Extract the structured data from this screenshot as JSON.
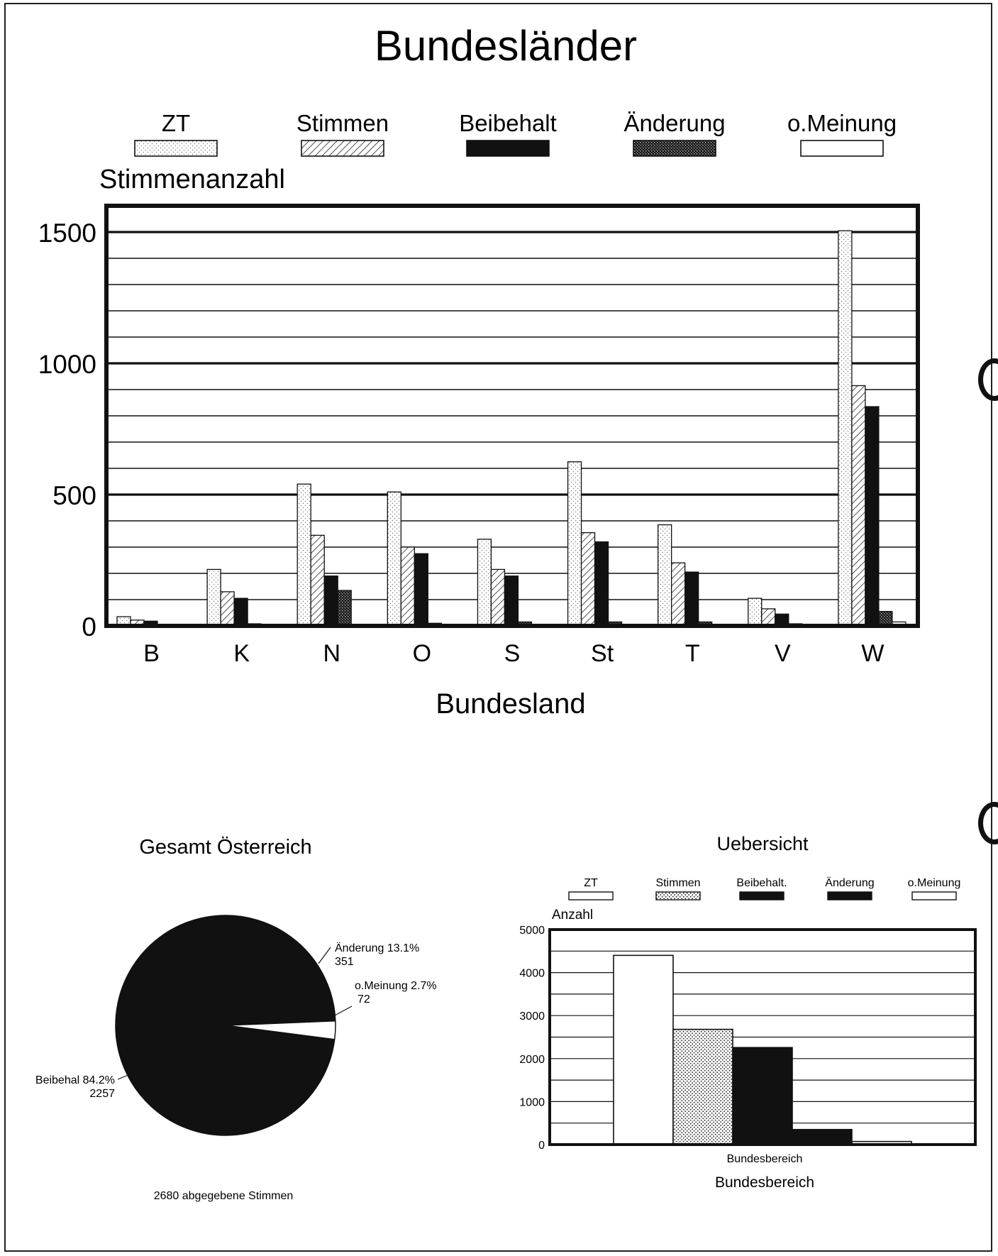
{
  "colors": {
    "ink": "#111111",
    "paper": "#ffffff"
  },
  "chart_data": [
    {
      "type": "bar",
      "title": "Bundesländer",
      "ylabel": "Stimmenanzahl",
      "xlabel": "Bundesland",
      "ylim": [
        0,
        1500
      ],
      "yticks": [
        0,
        500,
        1000,
        1500
      ],
      "grid": true,
      "legend_position": "top",
      "categories": [
        "B",
        "K",
        "N",
        "O",
        "S",
        "St",
        "T",
        "V",
        "W"
      ],
      "series": [
        {
          "name": "ZT",
          "pattern": "dotted-light",
          "values": [
            35,
            215,
            540,
            510,
            330,
            625,
            385,
            105,
            1505
          ]
        },
        {
          "name": "Stimmen",
          "pattern": "hatched",
          "values": [
            22,
            130,
            345,
            300,
            215,
            355,
            240,
            65,
            915
          ]
        },
        {
          "name": "Beibehalt",
          "pattern": "solid-black",
          "values": [
            18,
            105,
            190,
            275,
            190,
            320,
            205,
            45,
            835
          ]
        },
        {
          "name": "Änderung",
          "pattern": "crosshatch",
          "values": [
            2,
            8,
            135,
            10,
            15,
            15,
            15,
            8,
            55
          ]
        },
        {
          "name": "o.Meinung",
          "pattern": "white",
          "values": [
            1,
            3,
            5,
            3,
            3,
            5,
            5,
            3,
            15
          ]
        }
      ]
    },
    {
      "type": "pie",
      "title": "Gesamt Österreich",
      "footer": "2680 abgegebene Stimmen",
      "slices": [
        {
          "label": "Änderung",
          "percent_text": "13.1%",
          "count_text": "351",
          "value": 351,
          "fill": "black"
        },
        {
          "label": "o.Meinung",
          "percent_text": "2.7%",
          "count_text": "72",
          "value": 72,
          "fill": "white"
        },
        {
          "label": "Beibehal",
          "percent_text": "84.2%",
          "count_text": "2257",
          "value": 2257,
          "fill": "black"
        }
      ]
    },
    {
      "type": "bar",
      "title": "Uebersicht",
      "ylabel": "Anzahl",
      "xlabel": "Bundesbereich",
      "category_label": "Bundesbereich",
      "ylim": [
        0,
        5000
      ],
      "yticks": [
        0,
        1000,
        2000,
        3000,
        4000,
        5000
      ],
      "grid": true,
      "legend_position": "top",
      "categories": [
        "Bundesbereich"
      ],
      "series": [
        {
          "name": "ZT",
          "pattern": "white",
          "values": [
            4400
          ]
        },
        {
          "name": "Stimmen",
          "pattern": "dotted",
          "values": [
            2680
          ]
        },
        {
          "name": "Beibehalt.",
          "pattern": "solid-black",
          "values": [
            2257
          ]
        },
        {
          "name": "Änderung",
          "pattern": "solid-black",
          "values": [
            351
          ]
        },
        {
          "name": "o.Meinung",
          "pattern": "white",
          "values": [
            72
          ]
        }
      ]
    }
  ]
}
